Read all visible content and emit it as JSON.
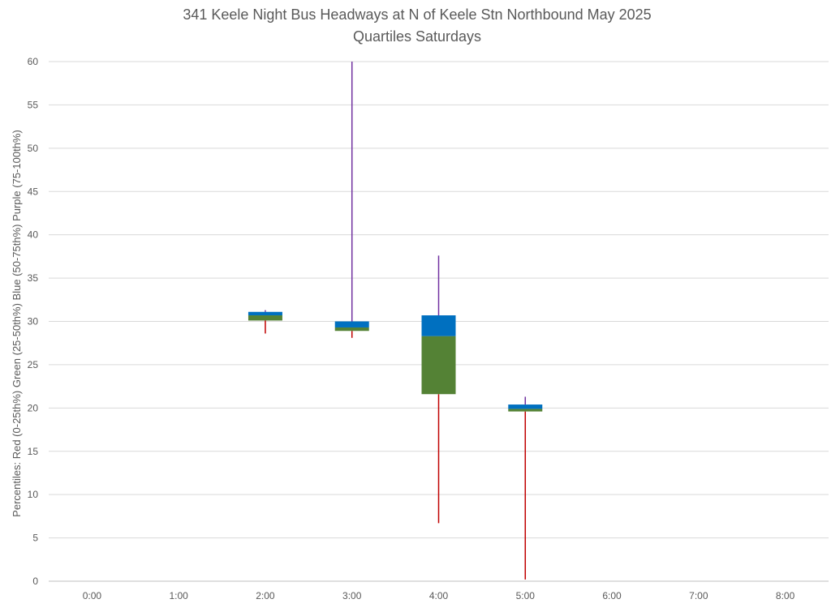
{
  "chart_data": {
    "type": "box",
    "title": "341 Keele Night Bus Headways at N of Keele Stn Northbound May 2025",
    "subtitle": "Quartiles Saturdays",
    "ylabel": "Percentiles:  Red (0-25th%)  Green (25-50th%)  Blue (50-75th%)  Purple (75-100th%)",
    "xlabel": "",
    "ylim": [
      0,
      60
    ],
    "ytick_step": 5,
    "grid": true,
    "categories": [
      "0:00",
      "1:00",
      "2:00",
      "3:00",
      "4:00",
      "5:00",
      "6:00",
      "7:00",
      "8:00"
    ],
    "boxes": [
      {
        "category": "2:00",
        "min": 28.6,
        "q1": 30.1,
        "median": 30.7,
        "q3": 31.1,
        "max": 31.3
      },
      {
        "category": "3:00",
        "min": 28.1,
        "q1": 28.9,
        "median": 29.3,
        "q3": 30.0,
        "max": 60.0
      },
      {
        "category": "4:00",
        "min": 6.7,
        "q1": 21.6,
        "median": 28.3,
        "q3": 30.7,
        "max": 37.6
      },
      {
        "category": "5:00",
        "min": 0.2,
        "q1": 19.6,
        "median": 19.9,
        "q3": 20.4,
        "max": 21.3
      }
    ],
    "colors": {
      "lower_whisker": "#c00000",
      "lower_box": "#548235",
      "upper_box": "#0070c0",
      "upper_whisker": "#7030a0",
      "grid": "#d9d9d9",
      "axis": "#bfbfbf",
      "text": "#595959"
    }
  }
}
